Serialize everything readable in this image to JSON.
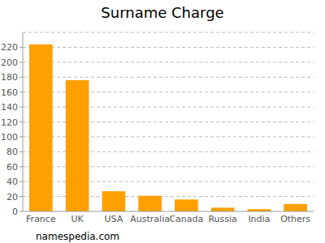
{
  "chart_data": {
    "type": "bar",
    "title": "Surname Charge",
    "categories": [
      "France",
      "UK",
      "USA",
      "Australia",
      "Canada",
      "Russia",
      "India",
      "Others"
    ],
    "values": [
      224,
      176,
      27,
      21,
      16,
      5,
      3,
      10
    ],
    "color": "#ffa000",
    "ylim": [
      0,
      240
    ],
    "yticks": [
      0,
      20,
      40,
      60,
      80,
      100,
      120,
      140,
      160,
      180,
      200,
      220
    ],
    "grid": true,
    "annotations": [
      "namespedia.com"
    ]
  }
}
